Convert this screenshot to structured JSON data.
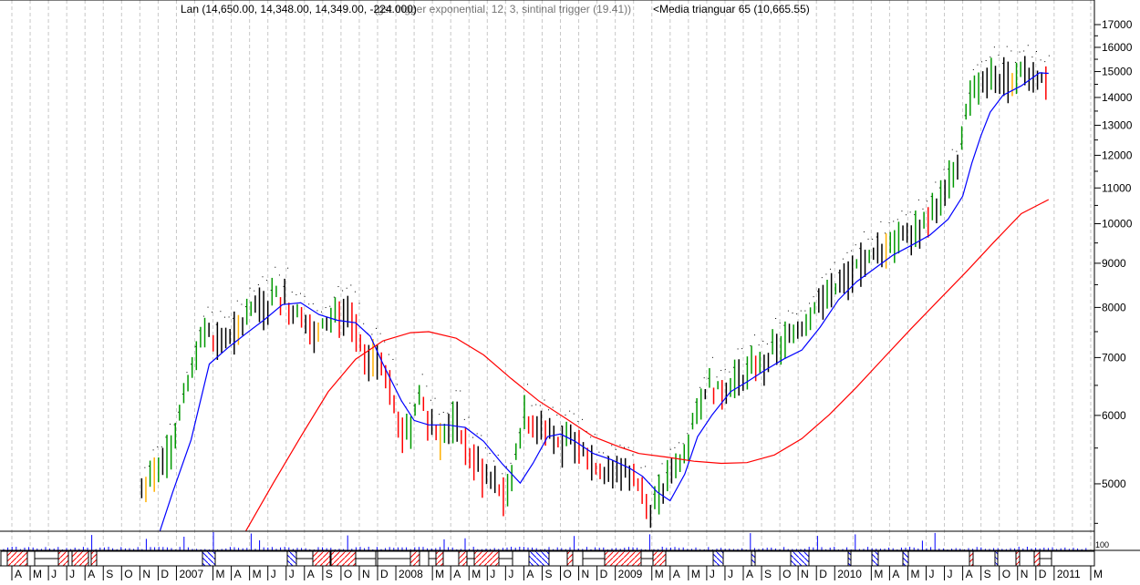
{
  "title": {
    "main": "Lan (14,650.00, 14,348.00, 14,349.00, -224.000)",
    "overlap": "(gst trigger exponential, 12, 3, sintinal trigger (19.41))",
    "ma": "<Media trianguar  65 (10,665.55)"
  },
  "chart_data": {
    "type": "line",
    "title": "Lan",
    "y_scale": "log",
    "ylim": [
      4410,
      17500
    ],
    "y_ticks": [
      "17000",
      "16000",
      "15000",
      "14000",
      "13000",
      "12000",
      "11000",
      "10000",
      "9000",
      "8000",
      "7000",
      "6000",
      "5000"
    ],
    "y_tick_values": [
      17000,
      16000,
      15000,
      14000,
      13000,
      12000,
      11000,
      10000,
      9000,
      8000,
      7000,
      6000,
      5000
    ],
    "x_unit": "months since Apr 2006",
    "x_labels": [
      "A",
      "M",
      "J",
      "J",
      "A",
      "S",
      "O",
      "N",
      "D",
      "2007",
      "M",
      "A",
      "M",
      "J",
      "J",
      "A",
      "S",
      "O",
      "N",
      "D",
      "2008",
      "M",
      "A",
      "M",
      "J",
      "J",
      "A",
      "S",
      "O",
      "N",
      "D",
      "2009",
      "M",
      "A",
      "M",
      "J",
      "J",
      "A",
      "S",
      "O",
      "N",
      "D",
      "2010",
      "M",
      "A",
      "M",
      "J",
      "J",
      "A",
      "S",
      "O",
      "N",
      "D",
      "2011",
      "M"
    ],
    "x_label_months": [
      0,
      1,
      2,
      3,
      4,
      5,
      6,
      7,
      8,
      9,
      11,
      12,
      13,
      14,
      15,
      16,
      17,
      18,
      19,
      20,
      21,
      23,
      24,
      25,
      26,
      27,
      28,
      29,
      30,
      31,
      32,
      33,
      35,
      36,
      37,
      38,
      39,
      40,
      41,
      42,
      43,
      44,
      45,
      47,
      48,
      49,
      50,
      51,
      52,
      53,
      54,
      55,
      56,
      57,
      59
    ],
    "series": [
      {
        "name": "Lan price",
        "color": "#000000",
        "points": [
          [
            7.1,
            4890
          ],
          [
            7.8,
            5150
          ],
          [
            8.8,
            5620
          ],
          [
            9.8,
            6700
          ],
          [
            10.6,
            7590
          ],
          [
            11.3,
            7320
          ],
          [
            12.3,
            7410
          ],
          [
            13.1,
            7950
          ],
          [
            13.8,
            8060
          ],
          [
            14.6,
            8280
          ],
          [
            15.3,
            7950
          ],
          [
            16.1,
            7740
          ],
          [
            16.6,
            7410
          ],
          [
            17.6,
            7850
          ],
          [
            18.6,
            7680
          ],
          [
            19.3,
            6880
          ],
          [
            20.0,
            7050
          ],
          [
            20.8,
            6390
          ],
          [
            21.3,
            5670
          ],
          [
            21.8,
            5810
          ],
          [
            22.3,
            6390
          ],
          [
            22.8,
            5810
          ],
          [
            23.5,
            5670
          ],
          [
            24.3,
            5950
          ],
          [
            25.0,
            5400
          ],
          [
            25.8,
            5150
          ],
          [
            26.5,
            5010
          ],
          [
            27.0,
            4780
          ],
          [
            27.5,
            5400
          ],
          [
            28.0,
            5950
          ],
          [
            28.8,
            5810
          ],
          [
            29.5,
            5810
          ],
          [
            30.0,
            5400
          ],
          [
            30.5,
            5670
          ],
          [
            31.3,
            5540
          ],
          [
            32.0,
            5210
          ],
          [
            32.8,
            5150
          ],
          [
            33.5,
            5210
          ],
          [
            34.3,
            4950
          ],
          [
            35.0,
            4640
          ],
          [
            35.8,
            5010
          ],
          [
            36.5,
            5280
          ],
          [
            37.3,
            5950
          ],
          [
            38.0,
            6470
          ],
          [
            38.8,
            6390
          ],
          [
            39.5,
            6620
          ],
          [
            40.2,
            6700
          ],
          [
            41.0,
            6880
          ],
          [
            41.7,
            7140
          ],
          [
            42.5,
            7320
          ],
          [
            43.2,
            7590
          ],
          [
            44.0,
            8160
          ],
          [
            44.7,
            8380
          ],
          [
            45.5,
            8480
          ],
          [
            46.2,
            8880
          ],
          [
            47.0,
            9110
          ],
          [
            47.7,
            9330
          ],
          [
            48.5,
            9690
          ],
          [
            49.2,
            9900
          ],
          [
            50.0,
            10120
          ],
          [
            50.7,
            10500
          ],
          [
            51.5,
            11430
          ],
          [
            52.0,
            12460
          ],
          [
            52.2,
            13820
          ],
          [
            52.6,
            14080
          ],
          [
            53.2,
            14580
          ],
          [
            54.0,
            14650
          ],
          [
            54.7,
            14950
          ],
          [
            55.5,
            15140
          ],
          [
            56.2,
            14770
          ],
          [
            56.7,
            14349
          ]
        ]
      },
      {
        "name": "Trigger exponential",
        "color": "#0000ff",
        "points": [
          [
            8.1,
            4410
          ],
          [
            8.8,
            4890
          ],
          [
            9.8,
            5620
          ],
          [
            10.8,
            6880
          ],
          [
            11.8,
            7180
          ],
          [
            12.8,
            7460
          ],
          [
            13.8,
            7740
          ],
          [
            14.8,
            8060
          ],
          [
            15.8,
            8100
          ],
          [
            16.8,
            7850
          ],
          [
            17.8,
            7730
          ],
          [
            18.8,
            7680
          ],
          [
            19.6,
            7410
          ],
          [
            20.3,
            6880
          ],
          [
            21.3,
            6240
          ],
          [
            22.0,
            5920
          ],
          [
            22.8,
            5850
          ],
          [
            23.8,
            5850
          ],
          [
            24.8,
            5810
          ],
          [
            25.8,
            5600
          ],
          [
            26.8,
            5280
          ],
          [
            27.8,
            5010
          ],
          [
            28.5,
            5280
          ],
          [
            29.3,
            5670
          ],
          [
            30.0,
            5710
          ],
          [
            30.8,
            5600
          ],
          [
            31.8,
            5420
          ],
          [
            32.8,
            5330
          ],
          [
            33.8,
            5210
          ],
          [
            34.5,
            5100
          ],
          [
            35.3,
            4890
          ],
          [
            36.0,
            4780
          ],
          [
            36.8,
            5130
          ],
          [
            37.5,
            5670
          ],
          [
            38.3,
            6010
          ],
          [
            39.3,
            6390
          ],
          [
            40.2,
            6560
          ],
          [
            41.2,
            6770
          ],
          [
            42.2,
            6970
          ],
          [
            43.2,
            7140
          ],
          [
            44.2,
            7590
          ],
          [
            45.2,
            8160
          ],
          [
            46.2,
            8570
          ],
          [
            47.2,
            8880
          ],
          [
            48.2,
            9200
          ],
          [
            49.2,
            9440
          ],
          [
            50.2,
            9700
          ],
          [
            51.2,
            10120
          ],
          [
            52.0,
            10760
          ],
          [
            52.5,
            11750
          ],
          [
            53.0,
            12650
          ],
          [
            53.5,
            13460
          ],
          [
            54.2,
            14080
          ],
          [
            55.2,
            14440
          ],
          [
            56.2,
            14950
          ],
          [
            56.7,
            14930
          ]
        ]
      },
      {
        "name": "Media trianguar 65",
        "color": "#ff0000",
        "points": [
          [
            12.8,
            4410
          ],
          [
            14.3,
            5010
          ],
          [
            15.8,
            5670
          ],
          [
            17.3,
            6390
          ],
          [
            18.8,
            6970
          ],
          [
            20.3,
            7320
          ],
          [
            21.8,
            7480
          ],
          [
            22.8,
            7500
          ],
          [
            24.3,
            7370
          ],
          [
            25.8,
            7050
          ],
          [
            27.3,
            6620
          ],
          [
            28.8,
            6240
          ],
          [
            30.3,
            5950
          ],
          [
            31.8,
            5670
          ],
          [
            33.3,
            5510
          ],
          [
            34.3,
            5420
          ],
          [
            35.8,
            5370
          ],
          [
            37.3,
            5310
          ],
          [
            38.8,
            5280
          ],
          [
            40.2,
            5290
          ],
          [
            41.7,
            5400
          ],
          [
            43.2,
            5640
          ],
          [
            44.7,
            6010
          ],
          [
            46.2,
            6470
          ],
          [
            47.7,
            7000
          ],
          [
            49.2,
            7570
          ],
          [
            50.7,
            8160
          ],
          [
            52.2,
            8800
          ],
          [
            53.7,
            9520
          ],
          [
            55.2,
            10270
          ],
          [
            56.7,
            10665
          ]
        ]
      }
    ],
    "volume_axis_label": "100",
    "grid": true
  }
}
